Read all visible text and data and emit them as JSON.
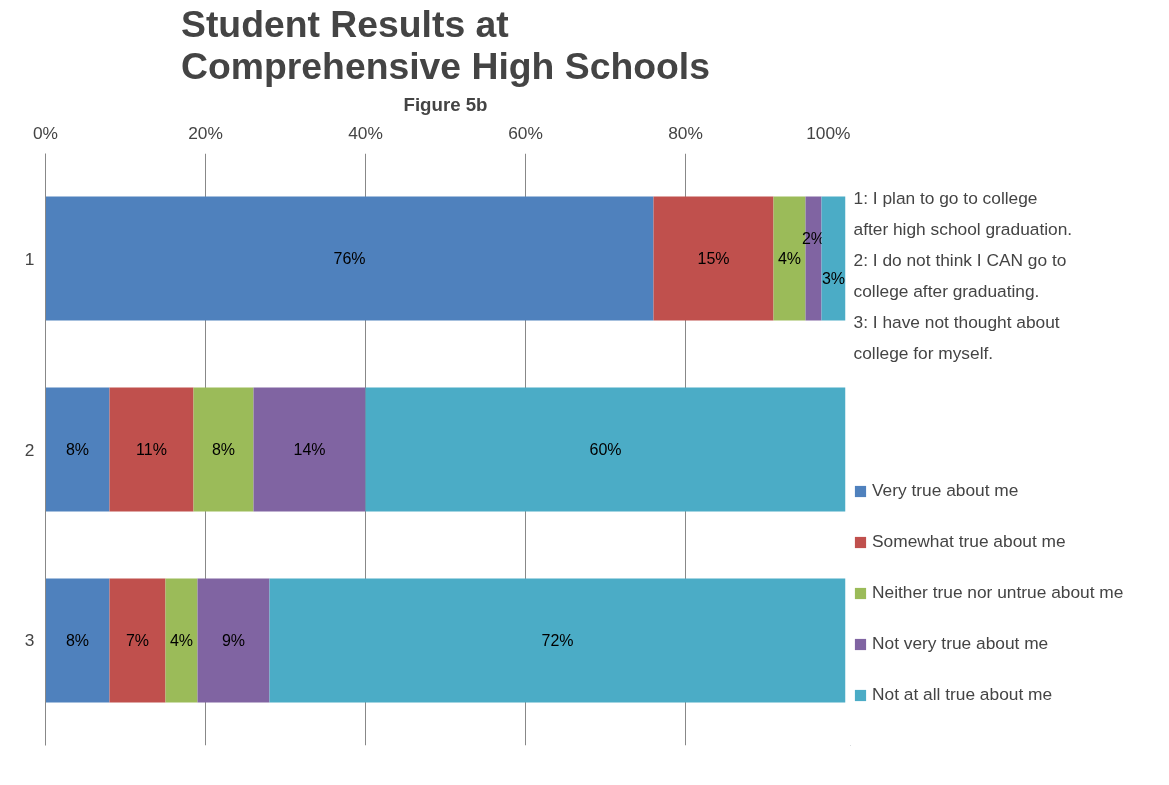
{
  "chart_data": {
    "type": "bar",
    "orientation": "horizontal",
    "stacked": true,
    "title": "Student Results at Comprehensive High Schools",
    "subtitle": "Figure 5b",
    "categories": [
      "1",
      "2",
      "3"
    ],
    "series": [
      {
        "name": "Very true about me",
        "color": "#4f81bd",
        "values": [
          76,
          8,
          8
        ],
        "value_labels": [
          "76%",
          "8%",
          "8%"
        ]
      },
      {
        "name": "Somewhat true about me",
        "color": "#c0504d",
        "values": [
          15,
          10.5,
          7
        ],
        "value_labels": [
          "15%",
          "11%",
          "7%"
        ]
      },
      {
        "name": "Neither true nor untrue about me",
        "color": "#9bbb59",
        "values": [
          4,
          7.5,
          4
        ],
        "value_labels": [
          "4%",
          "8%",
          "4%"
        ]
      },
      {
        "name": "Not very true about me",
        "color": "#8064a2",
        "values": [
          2,
          14,
          9
        ],
        "value_labels": [
          "2%",
          "14%",
          "9%"
        ]
      },
      {
        "name": "Not at all true about me",
        "color": "#4bacc6",
        "values": [
          3,
          60,
          72
        ],
        "value_labels": [
          "3%",
          "60%",
          "72%"
        ]
      }
    ],
    "xlim": [
      0,
      100
    ],
    "xticks": [
      {
        "value": 0,
        "label": "0%"
      },
      {
        "value": 20,
        "label": "20%"
      },
      {
        "value": 40,
        "label": "40%"
      },
      {
        "value": 60,
        "label": "60%"
      },
      {
        "value": 80,
        "label": "80%"
      },
      {
        "value": 100,
        "label": "100%"
      }
    ],
    "grid": "x",
    "legend": "right",
    "annotations": [
      "1: I plan to go to college after high school graduation.",
      "2: I do not think I CAN go to college after graduating.",
      "3: I have not thought about college for myself."
    ]
  }
}
